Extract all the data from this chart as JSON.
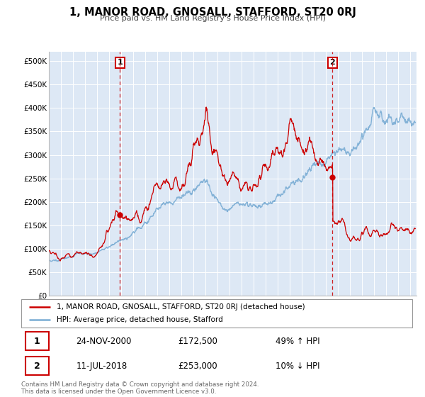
{
  "title": "1, MANOR ROAD, GNOSALL, STAFFORD, ST20 0RJ",
  "subtitle": "Price paid vs. HM Land Registry's House Price Index (HPI)",
  "legend_label_red": "1, MANOR ROAD, GNOSALL, STAFFORD, ST20 0RJ (detached house)",
  "legend_label_blue": "HPI: Average price, detached house, Stafford",
  "transaction1_date": "24-NOV-2000",
  "transaction1_price": "£172,500",
  "transaction1_hpi": "49% ↑ HPI",
  "transaction2_date": "11-JUL-2018",
  "transaction2_price": "£253,000",
  "transaction2_hpi": "10% ↓ HPI",
  "footer": "Contains HM Land Registry data © Crown copyright and database right 2024.\nThis data is licensed under the Open Government Licence v3.0.",
  "xlim": [
    1995.0,
    2025.5
  ],
  "ylim": [
    0,
    520000
  ],
  "yticks": [
    0,
    50000,
    100000,
    150000,
    200000,
    250000,
    300000,
    350000,
    400000,
    450000,
    500000
  ],
  "ytick_labels": [
    "£0",
    "£50K",
    "£100K",
    "£150K",
    "£200K",
    "£250K",
    "£300K",
    "£350K",
    "£400K",
    "£450K",
    "£500K"
  ],
  "xticks": [
    1995,
    1996,
    1997,
    1998,
    1999,
    2000,
    2001,
    2002,
    2003,
    2004,
    2005,
    2006,
    2007,
    2008,
    2009,
    2010,
    2011,
    2012,
    2013,
    2014,
    2015,
    2016,
    2017,
    2018,
    2019,
    2020,
    2021,
    2022,
    2023,
    2024,
    2025
  ],
  "background_color": "#dde8f5",
  "plot_bg_color": "#dde8f5",
  "red_color": "#cc0000",
  "blue_color": "#7aadd4",
  "transaction1_x": 2000.9,
  "transaction1_y": 172500,
  "transaction2_x": 2018.53,
  "transaction2_y": 253000,
  "vline1_x": 2000.9,
  "vline2_x": 2018.53
}
